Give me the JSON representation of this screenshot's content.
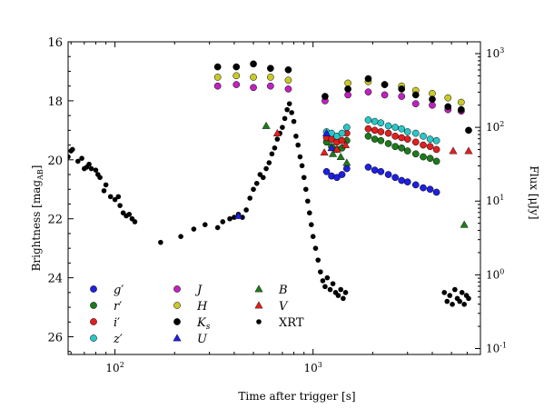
{
  "chart_data": {
    "type": "scatter",
    "xlabel": "Time after trigger [s]",
    "ylabel_main": "Brightness [mag",
    "ylabel_sub": "AB",
    "ylabel_right": "Flux [μJy]",
    "x_scale": "log",
    "xlim": [
      58,
      7000
    ],
    "ylim": [
      16,
      26.6
    ],
    "y_inverted": true,
    "x_ticks": [
      {
        "value": 100,
        "base": "10",
        "exp": "2"
      },
      {
        "value": 1000,
        "base": "10",
        "exp": "3"
      }
    ],
    "y_ticks": [
      16,
      18,
      20,
      22,
      24,
      26
    ],
    "right_ticks": [
      {
        "mag": 16.4,
        "base": "10",
        "exp": "3"
      },
      {
        "mag": 18.9,
        "base": "10",
        "exp": "2"
      },
      {
        "mag": 21.4,
        "base": "10",
        "exp": "1"
      },
      {
        "mag": 23.9,
        "base": "10",
        "exp": "0"
      },
      {
        "mag": 26.4,
        "base": "10",
        "exp": "-1"
      }
    ],
    "legend_position": "lower-left",
    "series": [
      {
        "name": "g′",
        "label_main": "g",
        "label_sub": "",
        "marker": "circle",
        "color": "#1f1fe0",
        "points": [
          [
            1170,
            20.4
          ],
          [
            1240,
            20.55
          ],
          [
            1320,
            20.6
          ],
          [
            1400,
            20.5
          ],
          [
            1480,
            20.3
          ],
          [
            1900,
            20.25
          ],
          [
            2050,
            20.35
          ],
          [
            2200,
            20.4
          ],
          [
            2400,
            20.5
          ],
          [
            2600,
            20.6
          ],
          [
            2800,
            20.7
          ],
          [
            3000,
            20.75
          ],
          [
            3300,
            20.85
          ],
          [
            3600,
            20.95
          ],
          [
            3900,
            21.0
          ],
          [
            4200,
            21.1
          ]
        ]
      },
      {
        "name": "r′",
        "label_main": "r",
        "label_sub": "",
        "marker": "circle",
        "color": "#1e7a1e",
        "points": [
          [
            1170,
            19.4
          ],
          [
            1240,
            19.55
          ],
          [
            1320,
            19.65
          ],
          [
            1400,
            19.6
          ],
          [
            1480,
            19.35
          ],
          [
            1900,
            19.2
          ],
          [
            2050,
            19.3
          ],
          [
            2200,
            19.35
          ],
          [
            2400,
            19.45
          ],
          [
            2600,
            19.55
          ],
          [
            2800,
            19.6
          ],
          [
            3000,
            19.7
          ],
          [
            3300,
            19.8
          ],
          [
            3600,
            19.9
          ],
          [
            3900,
            19.95
          ],
          [
            4200,
            20.05
          ]
        ]
      },
      {
        "name": "i′",
        "label_main": "i",
        "label_sub": "",
        "marker": "circle",
        "color": "#e01f1f",
        "points": [
          [
            1170,
            19.25
          ],
          [
            1240,
            19.3
          ],
          [
            1320,
            19.4
          ],
          [
            1400,
            19.35
          ],
          [
            1480,
            19.1
          ],
          [
            1900,
            18.95
          ],
          [
            2050,
            19.0
          ],
          [
            2200,
            19.05
          ],
          [
            2400,
            19.1
          ],
          [
            2600,
            19.2
          ],
          [
            2800,
            19.25
          ],
          [
            3000,
            19.3
          ],
          [
            3300,
            19.4
          ],
          [
            3600,
            19.5
          ],
          [
            3900,
            19.55
          ],
          [
            4200,
            19.65
          ]
        ]
      },
      {
        "name": "z′",
        "label_main": "z",
        "label_sub": "",
        "marker": "circle",
        "color": "#2ac7c7",
        "points": [
          [
            1170,
            19.05
          ],
          [
            1240,
            19.1
          ],
          [
            1320,
            19.2
          ],
          [
            1400,
            19.1
          ],
          [
            1480,
            18.9
          ],
          [
            1900,
            18.65
          ],
          [
            2050,
            18.7
          ],
          [
            2200,
            18.75
          ],
          [
            2400,
            18.85
          ],
          [
            2600,
            18.9
          ],
          [
            2800,
            18.95
          ],
          [
            3000,
            19.05
          ],
          [
            3300,
            19.1
          ],
          [
            3600,
            19.2
          ],
          [
            3900,
            19.3
          ],
          [
            4200,
            19.35
          ]
        ]
      },
      {
        "name": "J",
        "label_main": "J",
        "label_sub": "",
        "marker": "circle",
        "color": "#c021c0",
        "points": [
          [
            330,
            17.5
          ],
          [
            410,
            17.45
          ],
          [
            500,
            17.55
          ],
          [
            610,
            17.5
          ],
          [
            750,
            17.6
          ],
          [
            1150,
            18.0
          ],
          [
            1500,
            17.8
          ],
          [
            1900,
            17.7
          ],
          [
            2300,
            17.8
          ],
          [
            2800,
            17.85
          ],
          [
            3300,
            18.1
          ],
          [
            4000,
            18.15
          ],
          [
            4800,
            18.3
          ],
          [
            5600,
            18.35
          ]
        ]
      },
      {
        "name": "H",
        "label_main": "H",
        "label_sub": "",
        "marker": "circle",
        "color": "#c9c92a",
        "points": [
          [
            330,
            17.2
          ],
          [
            410,
            17.15
          ],
          [
            500,
            17.2
          ],
          [
            610,
            17.2
          ],
          [
            750,
            17.3
          ],
          [
            1500,
            17.4
          ],
          [
            1900,
            17.35
          ],
          [
            2300,
            17.45
          ],
          [
            2800,
            17.5
          ],
          [
            3300,
            17.65
          ],
          [
            4000,
            17.75
          ],
          [
            4800,
            17.9
          ],
          [
            5600,
            18.05
          ]
        ]
      },
      {
        "name": "Ks",
        "label_main": "K",
        "label_sub": "s",
        "marker": "circle",
        "color": "#000000",
        "points": [
          [
            330,
            16.85
          ],
          [
            410,
            16.85
          ],
          [
            500,
            16.75
          ],
          [
            610,
            16.9
          ],
          [
            750,
            16.95
          ],
          [
            1150,
            17.85
          ],
          [
            1500,
            17.6
          ],
          [
            1900,
            17.25
          ],
          [
            2300,
            17.45
          ],
          [
            2800,
            17.6
          ],
          [
            3300,
            17.8
          ],
          [
            4000,
            17.95
          ],
          [
            4800,
            18.2
          ],
          [
            5600,
            18.3
          ],
          [
            6100,
            19.0
          ]
        ]
      },
      {
        "name": "U",
        "label_main": "U",
        "label_sub": "",
        "marker": "triangle",
        "color": "#1f1fe0",
        "points": [
          [
            420,
            21.9
          ],
          [
            1170,
            19.1
          ],
          [
            1240,
            19.6
          ]
        ]
      },
      {
        "name": "B",
        "label_main": "B",
        "label_sub": "",
        "marker": "triangle",
        "color": "#1e7a1e",
        "points": [
          [
            580,
            18.85
          ],
          [
            1260,
            19.8
          ],
          [
            1380,
            19.9
          ],
          [
            1480,
            20.1
          ],
          [
            5800,
            22.2
          ]
        ]
      },
      {
        "name": "V",
        "label_main": "V",
        "label_sub": "",
        "marker": "triangle",
        "color": "#e01f1f",
        "points": [
          [
            660,
            19.1
          ],
          [
            1140,
            19.75
          ],
          [
            1320,
            19.65
          ],
          [
            1460,
            19.5
          ],
          [
            5100,
            19.7
          ],
          [
            6100,
            19.7
          ]
        ]
      },
      {
        "name": "XRT",
        "label_main": "XRT",
        "label_sub": "",
        "marker": "dot",
        "color": "#000000",
        "points": [
          [
            58,
            19.9
          ],
          [
            60,
            19.7
          ],
          [
            61,
            19.65
          ],
          [
            65,
            20.05
          ],
          [
            68,
            19.95
          ],
          [
            70,
            20.3
          ],
          [
            72,
            20.25
          ],
          [
            74,
            20.15
          ],
          [
            76,
            20.3
          ],
          [
            80,
            20.35
          ],
          [
            82,
            20.5
          ],
          [
            84,
            20.6
          ],
          [
            88,
            21.05
          ],
          [
            90,
            20.85
          ],
          [
            95,
            21.25
          ],
          [
            100,
            21.35
          ],
          [
            104,
            21.25
          ],
          [
            106,
            21.55
          ],
          [
            110,
            21.8
          ],
          [
            114,
            21.9
          ],
          [
            118,
            21.85
          ],
          [
            122,
            22.0
          ],
          [
            126,
            22.1
          ],
          [
            170,
            22.8
          ],
          [
            215,
            22.6
          ],
          [
            250,
            22.35
          ],
          [
            285,
            22.2
          ],
          [
            330,
            22.3
          ],
          [
            350,
            22.1
          ],
          [
            380,
            22.0
          ],
          [
            400,
            21.95
          ],
          [
            420,
            21.85
          ],
          [
            440,
            21.95
          ],
          [
            460,
            21.7
          ],
          [
            480,
            21.3
          ],
          [
            500,
            21.0
          ],
          [
            520,
            20.8
          ],
          [
            540,
            20.5
          ],
          [
            560,
            20.6
          ],
          [
            580,
            20.3
          ],
          [
            600,
            20.1
          ],
          [
            620,
            19.8
          ],
          [
            640,
            19.6
          ],
          [
            660,
            19.3
          ],
          [
            680,
            19.1
          ],
          [
            700,
            18.9
          ],
          [
            720,
            18.6
          ],
          [
            740,
            18.3
          ],
          [
            760,
            18.1
          ],
          [
            780,
            18.4
          ],
          [
            800,
            18.7
          ],
          [
            820,
            19.2
          ],
          [
            840,
            19.5
          ],
          [
            860,
            19.9
          ],
          [
            880,
            20.2
          ],
          [
            900,
            20.6
          ],
          [
            920,
            21.0
          ],
          [
            940,
            21.4
          ],
          [
            960,
            21.8
          ],
          [
            980,
            22.2
          ],
          [
            1000,
            22.6
          ],
          [
            1030,
            23.0
          ],
          [
            1060,
            23.4
          ],
          [
            1090,
            23.8
          ],
          [
            1120,
            24.1
          ],
          [
            1150,
            24.3
          ],
          [
            1180,
            24.0
          ],
          [
            1220,
            24.4
          ],
          [
            1260,
            24.2
          ],
          [
            1300,
            24.5
          ],
          [
            1340,
            24.6
          ],
          [
            1380,
            24.4
          ],
          [
            1420,
            24.7
          ],
          [
            1460,
            24.5
          ],
          [
            4600,
            24.5
          ],
          [
            4750,
            24.8
          ],
          [
            4900,
            24.6
          ],
          [
            5050,
            24.9
          ],
          [
            5200,
            24.4
          ],
          [
            5350,
            24.7
          ],
          [
            5500,
            24.8
          ],
          [
            5650,
            24.5
          ],
          [
            5800,
            24.9
          ],
          [
            5950,
            24.6
          ],
          [
            6100,
            24.7
          ]
        ]
      }
    ]
  }
}
